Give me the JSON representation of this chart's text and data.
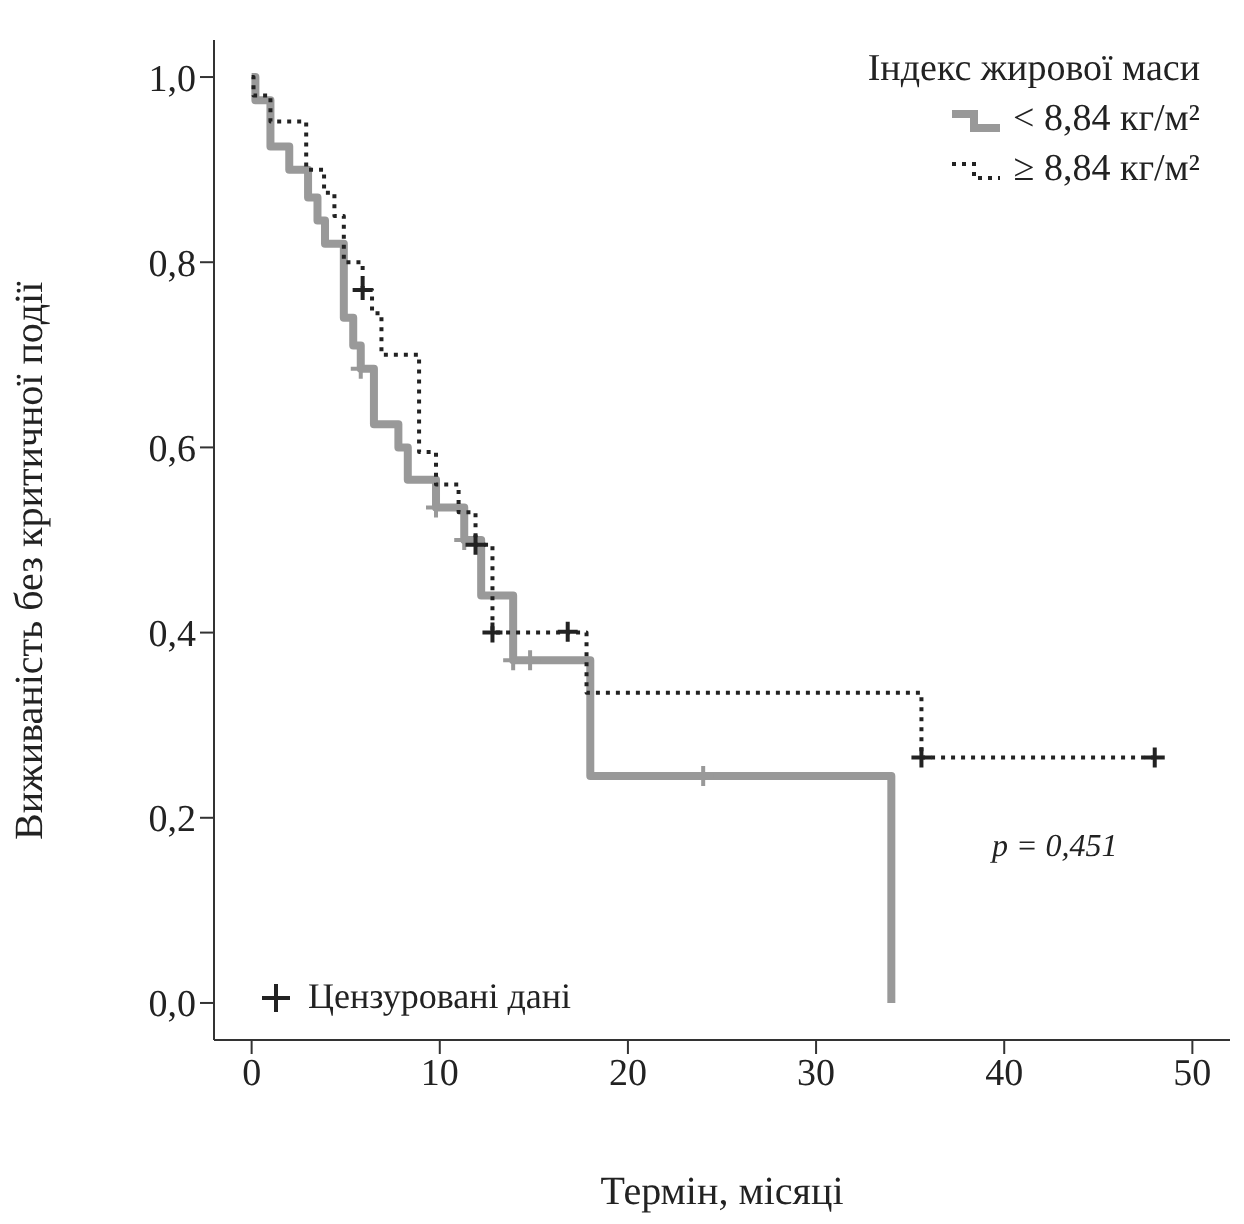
{
  "chart_data": {
    "type": "step",
    "xlabel": "Термін, місяці",
    "ylabel": "Виживаність без критичної події",
    "legend_title": "Індекс жирової маси",
    "legend": "top right",
    "grid": false,
    "xlim": [
      -2,
      52
    ],
    "xticks": [
      0,
      10,
      20,
      30,
      40,
      50
    ],
    "ylim": [
      -0.04,
      1.04
    ],
    "yticks": [
      {
        "value": 0,
        "label": "0,0"
      },
      {
        "value": 0.2,
        "label": "0,2"
      },
      {
        "value": 0.4,
        "label": "0,4"
      },
      {
        "value": 0.6,
        "label": "0,6"
      },
      {
        "value": 0.8,
        "label": "0,8"
      },
      {
        "value": 1,
        "label": "1,0"
      }
    ],
    "annotations": [
      "Цензуровані дані",
      "p = 0,451"
    ],
    "series": [
      {
        "name": "< 8,84 кг/м²",
        "color": "#999999",
        "line_style": "solid",
        "marker": "none",
        "x": [
          0,
          0.2,
          1,
          2,
          3,
          3.5,
          3.9,
          4.9,
          5.4,
          5.8,
          6.5,
          7.8,
          8.3,
          9.8,
          11.3,
          12.2,
          13.9,
          18,
          34,
          34
        ],
        "values": [
          1,
          0.975,
          0.925,
          0.9,
          0.87,
          0.845,
          0.82,
          0.74,
          0.71,
          0.685,
          0.625,
          0.6,
          0.565,
          0.535,
          0.5,
          0.44,
          0.37,
          0.245,
          0.245,
          0
        ]
      },
      {
        "name": "≥ 8,84 кг/м²",
        "color": "#222222",
        "line_style": "dotted",
        "marker": "none",
        "x": [
          0,
          0.1,
          1,
          2.9,
          3.85,
          4.4,
          4.9,
          5.9,
          6.4,
          6.9,
          8.9,
          9.8,
          11,
          11.9,
          12.8,
          17.8,
          35.6,
          48
        ],
        "values": [
          1,
          0.98,
          0.952,
          0.9,
          0.875,
          0.85,
          0.8,
          0.77,
          0.745,
          0.7,
          0.595,
          0.56,
          0.53,
          0.495,
          0.4,
          0.335,
          0.265,
          0.265
        ]
      },
      {
        "type": "scatter",
        "color": "#999999",
        "marker": "cross",
        "x": [
          5.8,
          9.8,
          11.3,
          13.9,
          14.8,
          24
        ],
        "values": [
          0.685,
          0.535,
          0.5,
          0.37,
          0.37,
          0.245
        ]
      },
      {
        "type": "scatter",
        "color": "#222222",
        "marker": "cross",
        "x": [
          5.9,
          11.9,
          12.8,
          16.8,
          35.6,
          48
        ],
        "values": [
          0.77,
          0.495,
          0.4,
          0.401,
          0.265,
          0.265
        ]
      }
    ]
  }
}
